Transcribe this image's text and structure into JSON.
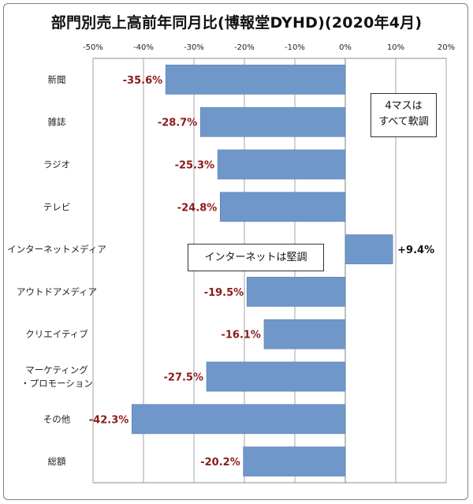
{
  "chart_data": {
    "type": "bar",
    "orientation": "horizontal",
    "title": "部門別売上高前年同月比(博報堂DYHD)(2020年4月)",
    "categories": [
      "新聞",
      "雑誌",
      "ラジオ",
      "テレビ",
      "インターネットメディア",
      "アウトドアメディア",
      "クリエイティブ",
      "マーケティング\n・プロモーション",
      "その他",
      "総額"
    ],
    "values": [
      -35.6,
      -28.7,
      -25.3,
      -24.8,
      9.4,
      -19.5,
      -16.1,
      -27.5,
      -42.3,
      -20.2
    ],
    "value_labels": [
      "-35.6%",
      "-28.7%",
      "-25.3%",
      "-24.8%",
      "+9.4%",
      "-19.5%",
      "-16.1%",
      "-27.5%",
      "-42.3%",
      "-20.2%"
    ],
    "xlim": [
      -50,
      20
    ],
    "x_ticks": [
      -50,
      -40,
      -30,
      -20,
      -10,
      0,
      10,
      20
    ],
    "x_tick_labels": [
      "-50%",
      "-40%",
      "-30%",
      "-20%",
      "-10%",
      "0%",
      "10%",
      "20%"
    ],
    "grid": true,
    "bar_color": "#6f97c9",
    "negative_label_color": "#8b1a1a",
    "positive_label_color": "#111111",
    "annotations": [
      {
        "lines": [
          "4マスは",
          "すべて軟調"
        ]
      },
      {
        "lines": [
          "インターネットは堅調"
        ]
      }
    ]
  }
}
